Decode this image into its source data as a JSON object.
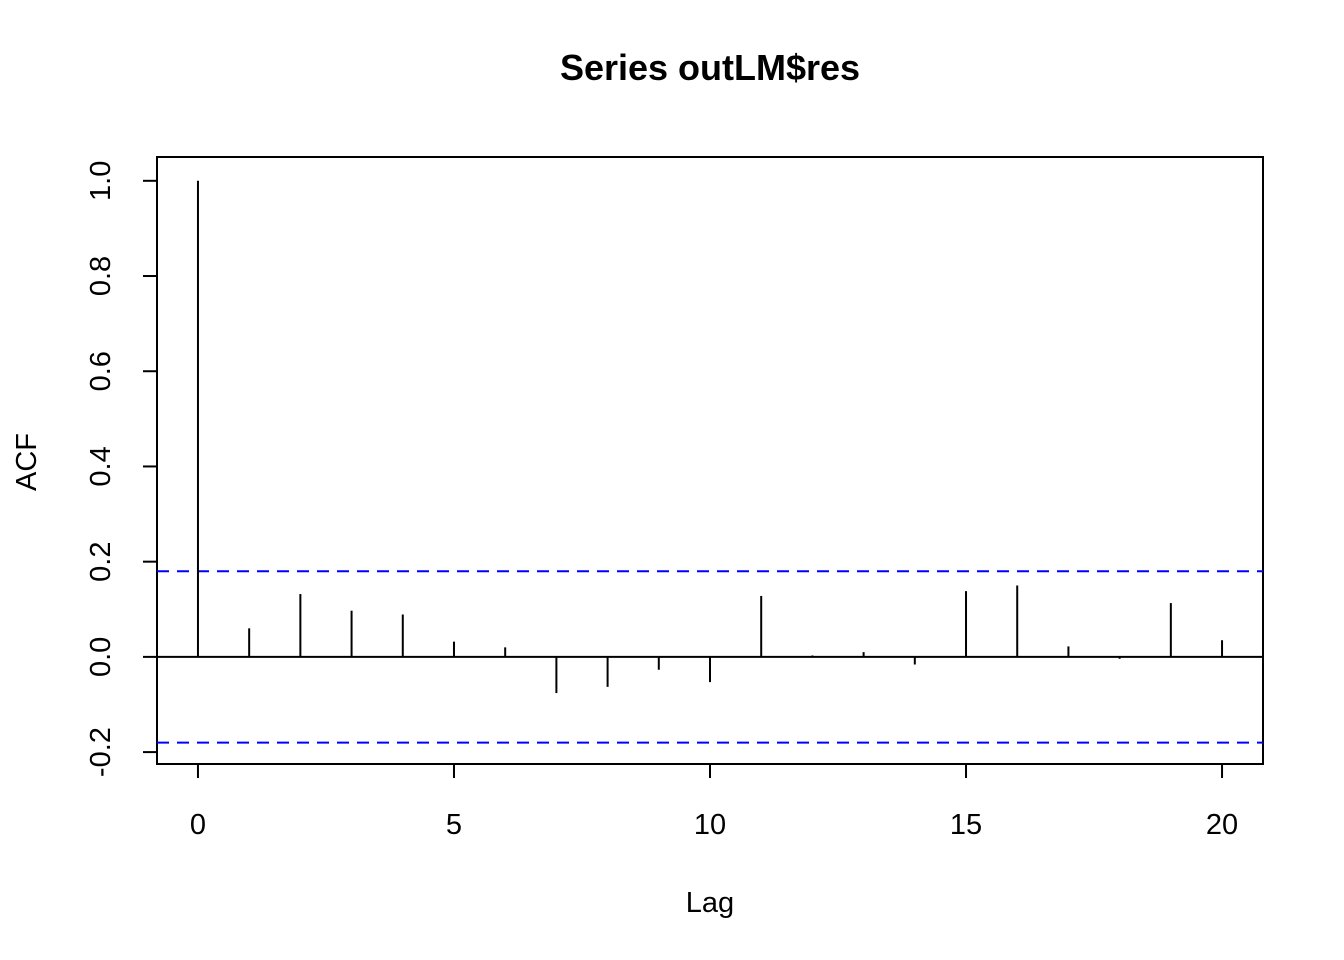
{
  "chart_data": {
    "type": "bar",
    "title": "Series  outLM$res",
    "xlabel": "Lag",
    "ylabel": "ACF",
    "xlim": [
      -0.8,
      20.8
    ],
    "ylim": [
      -0.225,
      1.05
    ],
    "xticks": [
      0,
      5,
      10,
      15,
      20
    ],
    "xtick_labels": [
      "0",
      "5",
      "10",
      "15",
      "20"
    ],
    "yticks": [
      -0.2,
      0.0,
      0.2,
      0.4,
      0.6,
      0.8,
      1.0
    ],
    "ytick_labels": [
      "-0.2",
      "0.0",
      "0.2",
      "0.4",
      "0.6",
      "0.8",
      "1.0"
    ],
    "lags": [
      0,
      1,
      2,
      3,
      4,
      5,
      6,
      7,
      8,
      9,
      10,
      11,
      12,
      13,
      14,
      15,
      16,
      17,
      18,
      19,
      20
    ],
    "acf": [
      1.0,
      0.06,
      0.132,
      0.097,
      0.089,
      0.032,
      0.02,
      -0.076,
      -0.063,
      -0.027,
      -0.053,
      0.128,
      0.003,
      0.01,
      -0.016,
      0.138,
      0.15,
      0.022,
      -0.004,
      0.113,
      0.035
    ],
    "confidence_bounds": [
      0.18,
      -0.18
    ],
    "zero_line": 0.0,
    "grid": false,
    "legend": "none",
    "colors": {
      "bars": "#000000",
      "confidence": "#0000ff",
      "axes": "#000000"
    }
  }
}
